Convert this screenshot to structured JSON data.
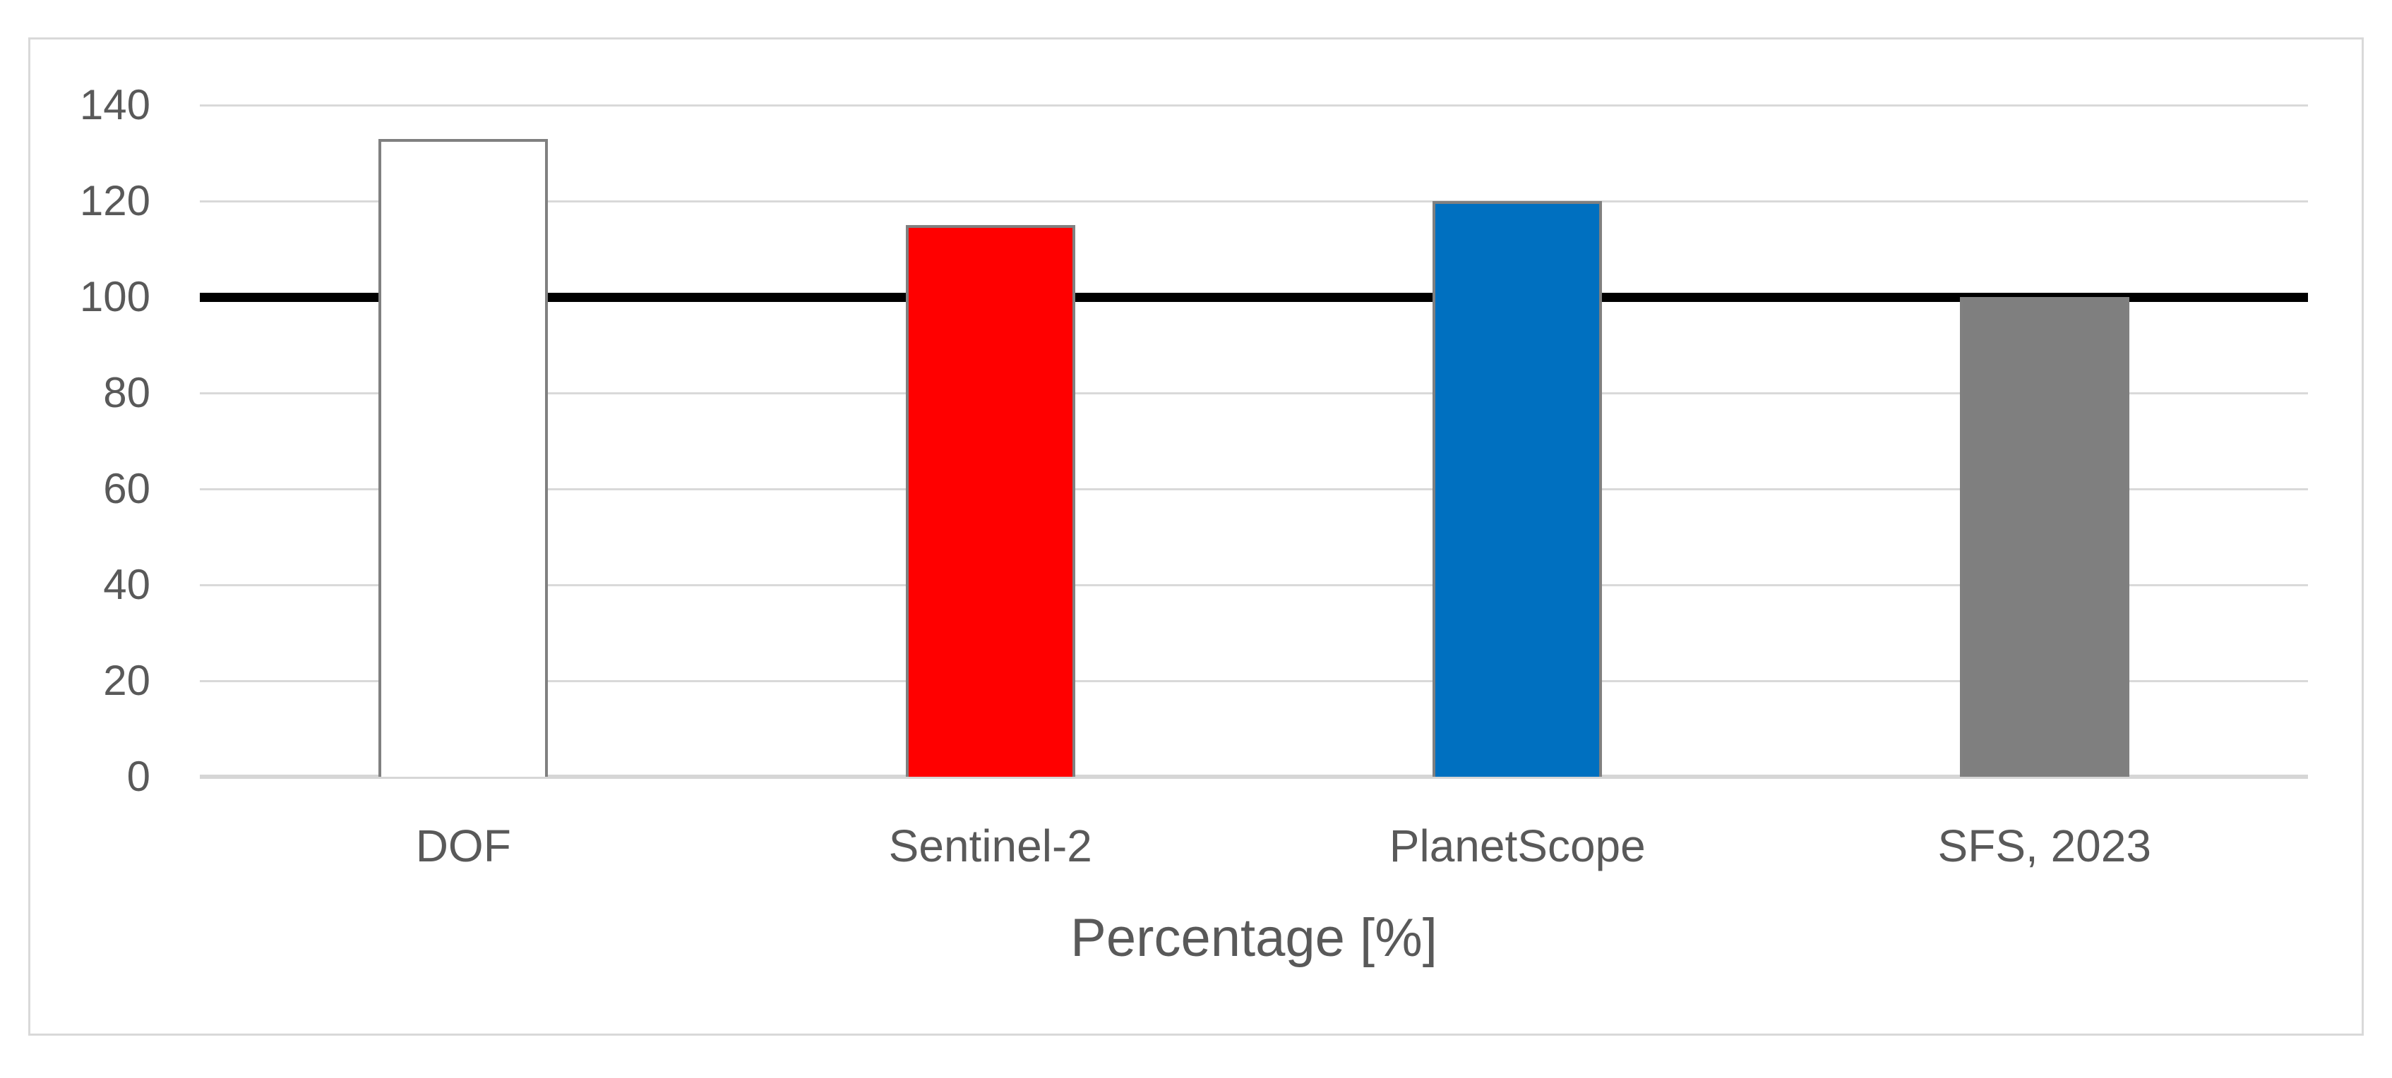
{
  "chart_data": {
    "type": "bar",
    "title": "",
    "xlabel": "Percentage [%]",
    "ylabel": "",
    "categories": [
      "DOF",
      "Sentinel-2",
      "PlanetScope",
      "SFS, 2023"
    ],
    "values": [
      133,
      115,
      120,
      100
    ],
    "bar_colors": [
      "#FFFFFF",
      "#FF0000",
      "#0070C0",
      "#7F7F7F"
    ],
    "bar_border_color": "#808080",
    "ylim": [
      0,
      140
    ],
    "ytick_interval": 20,
    "ytick_labels": [
      "0",
      "20",
      "40",
      "60",
      "80",
      "100",
      "120",
      "140"
    ],
    "reference_line": {
      "value": 100,
      "color": "#000000"
    },
    "grid": "horizontal",
    "gridline_color": "#D9D9D9",
    "axis_line_color": "#D6D6D6",
    "text_color": "#595959",
    "frame_border_color": "#D9D9D9",
    "legend_position": "none"
  }
}
